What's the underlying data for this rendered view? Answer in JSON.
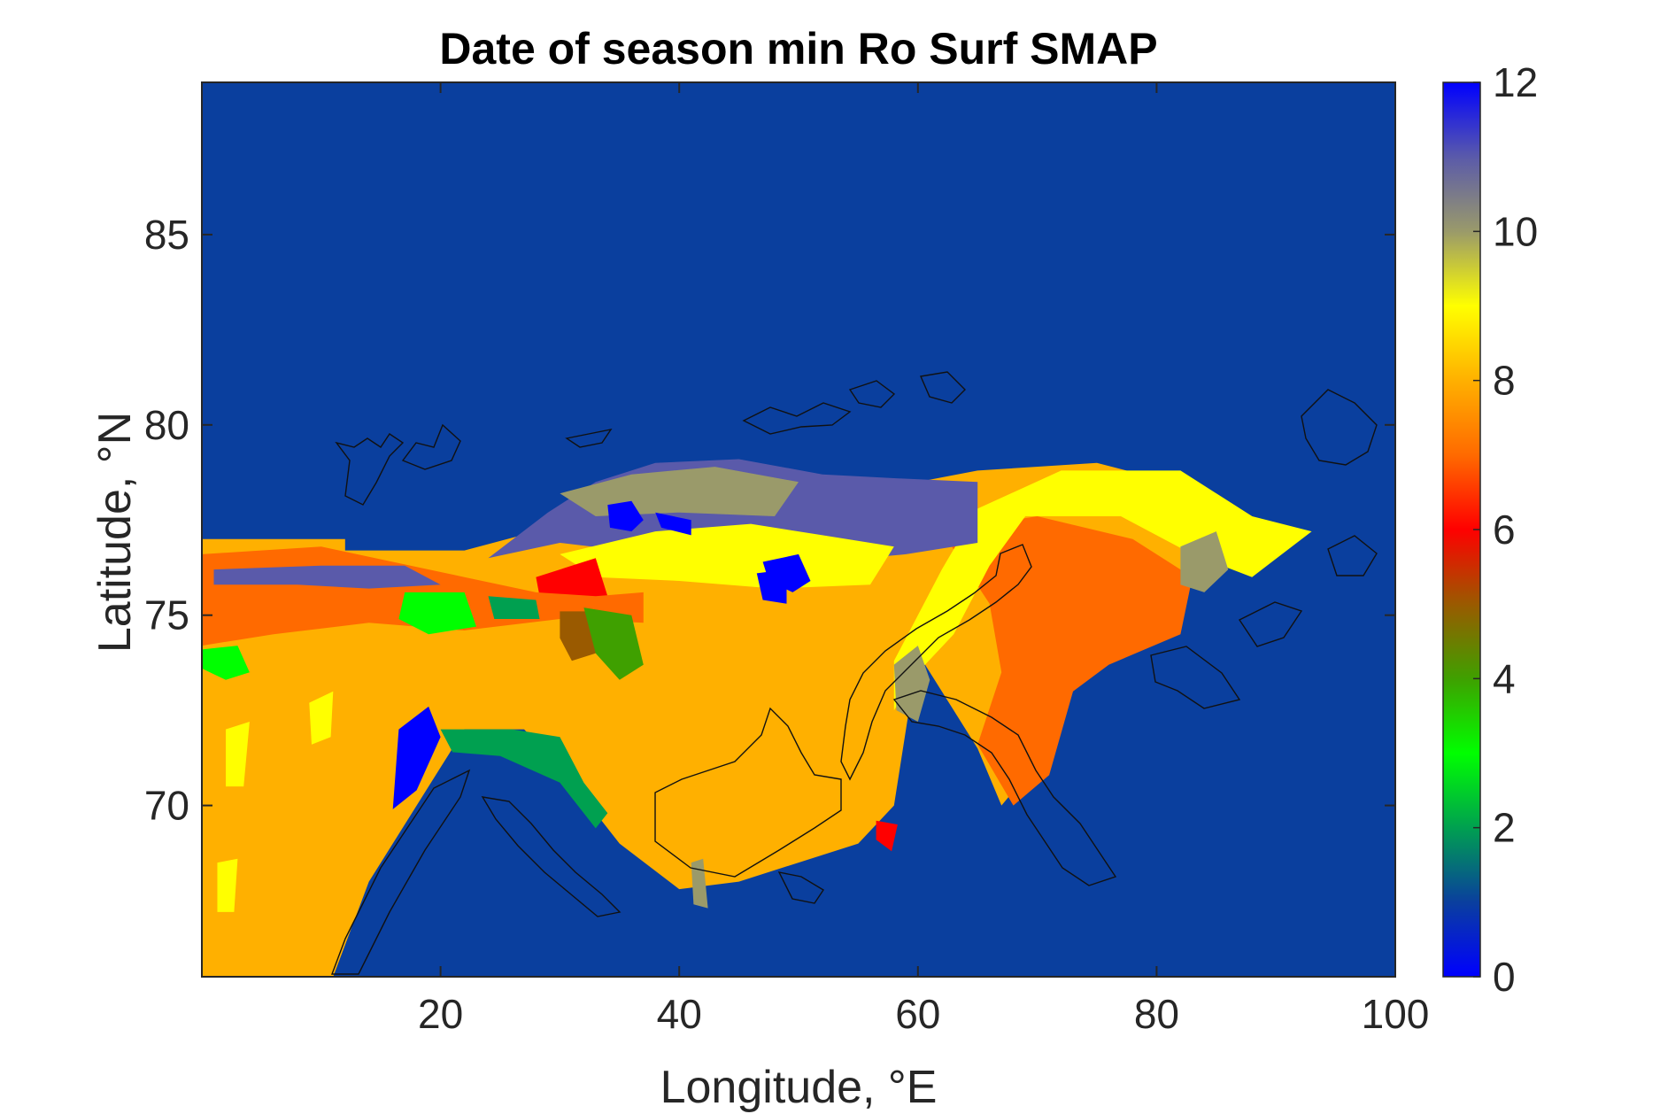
{
  "chart_data": {
    "type": "heatmap",
    "title": "Date of season min Ro Surf SMAP",
    "xlabel": "Longitude, °E",
    "ylabel": "Latitude, °N",
    "xlim": [
      0,
      100
    ],
    "ylim": [
      65.5,
      89
    ],
    "xticks": [
      20,
      40,
      60,
      80,
      100
    ],
    "yticks": [
      70,
      75,
      80,
      85
    ],
    "colorbar": {
      "range": [
        0,
        12
      ],
      "ticks": [
        0,
        2,
        4,
        6,
        8,
        10,
        12
      ],
      "colormap": [
        {
          "value": 0,
          "color": "#0000ff"
        },
        {
          "value": 1,
          "color": "#0a3f9e"
        },
        {
          "value": 2,
          "color": "#00a050"
        },
        {
          "value": 3,
          "color": "#00ff00"
        },
        {
          "value": 4,
          "color": "#3fa000"
        },
        {
          "value": 5,
          "color": "#9a5a00"
        },
        {
          "value": 6,
          "color": "#ff0000"
        },
        {
          "value": 7,
          "color": "#ff6a00"
        },
        {
          "value": 8,
          "color": "#ffb000"
        },
        {
          "value": 9,
          "color": "#ffff00"
        },
        {
          "value": 10,
          "color": "#9a9a6a"
        },
        {
          "value": 11,
          "color": "#5a5aaa"
        },
        {
          "value": 12,
          "color": "#0000ff"
        }
      ]
    },
    "background_value": 1,
    "regions": [
      {
        "value": 8,
        "polygon": [
          [
            0,
            77
          ],
          [
            12,
            77
          ],
          [
            12,
            76.7
          ],
          [
            22,
            76.7
          ],
          [
            28,
            77.2
          ],
          [
            30,
            77.7
          ],
          [
            37,
            78.2
          ],
          [
            45,
            78.4
          ],
          [
            55,
            78.2
          ],
          [
            65,
            78.8
          ],
          [
            75,
            79
          ],
          [
            85,
            78.2
          ],
          [
            90,
            77.2
          ],
          [
            84,
            75.9
          ],
          [
            78,
            75
          ],
          [
            72,
            73.6
          ],
          [
            71,
            71.5
          ],
          [
            67,
            70
          ],
          [
            65,
            71.5
          ],
          [
            60,
            74
          ],
          [
            58,
            70
          ],
          [
            55,
            69
          ],
          [
            50,
            68.5
          ],
          [
            45,
            68
          ],
          [
            40,
            67.8
          ],
          [
            35,
            69
          ],
          [
            30,
            71
          ],
          [
            27,
            72
          ],
          [
            22,
            72
          ],
          [
            20,
            71
          ],
          [
            14,
            68
          ],
          [
            11,
            65.5
          ],
          [
            0,
            65.5
          ]
        ]
      },
      {
        "value": 7,
        "polygon": [
          [
            62,
            77.2
          ],
          [
            70,
            77.6
          ],
          [
            78,
            77
          ],
          [
            83,
            76
          ],
          [
            82,
            74.5
          ],
          [
            76,
            73.7
          ],
          [
            73,
            73
          ],
          [
            71,
            70.8
          ],
          [
            68,
            70
          ],
          [
            65,
            71.6
          ],
          [
            67,
            73.5
          ],
          [
            66,
            75.3
          ]
        ]
      },
      {
        "value": 9,
        "polygon": [
          [
            60,
            75
          ],
          [
            62,
            76.2
          ],
          [
            65,
            77.8
          ],
          [
            72,
            78.8
          ],
          [
            82,
            78.8
          ],
          [
            88,
            77.6
          ],
          [
            93,
            77.2
          ],
          [
            88,
            76
          ],
          [
            83,
            76.6
          ],
          [
            77,
            77.6
          ],
          [
            69,
            77.6
          ],
          [
            66,
            76.3
          ],
          [
            63,
            74.5
          ],
          [
            60,
            73.5
          ],
          [
            58,
            72.5
          ],
          [
            58,
            73.8
          ]
        ]
      },
      {
        "value": 10,
        "polygon": [
          [
            58,
            73.7
          ],
          [
            60,
            74.2
          ],
          [
            61,
            73.3
          ],
          [
            60,
            72.2
          ],
          [
            58.2,
            72.5
          ]
        ]
      },
      {
        "value": 10,
        "polygon": [
          [
            82,
            76.8
          ],
          [
            85,
            77.2
          ],
          [
            86,
            76.2
          ],
          [
            84,
            75.6
          ],
          [
            82,
            75.8
          ]
        ]
      },
      {
        "value": 11,
        "polygon": [
          [
            29,
            77.7
          ],
          [
            33,
            78.5
          ],
          [
            38,
            79
          ],
          [
            45,
            79.1
          ],
          [
            52,
            78.7
          ],
          [
            58,
            78.6
          ],
          [
            65,
            78.5
          ],
          [
            65,
            76.9
          ],
          [
            59,
            76.6
          ],
          [
            52,
            76.4
          ],
          [
            45,
            76.5
          ],
          [
            38,
            76.6
          ],
          [
            30,
            76.9
          ],
          [
            24,
            76.5
          ]
        ]
      },
      {
        "value": 10,
        "polygon": [
          [
            30,
            78.2
          ],
          [
            36,
            78.7
          ],
          [
            43,
            78.9
          ],
          [
            50,
            78.5
          ],
          [
            48,
            77.6
          ],
          [
            40,
            77.7
          ],
          [
            33,
            77.6
          ]
        ]
      },
      {
        "value": 9,
        "polygon": [
          [
            30,
            76.6
          ],
          [
            38,
            77.2
          ],
          [
            46,
            77.4
          ],
          [
            52,
            77.1
          ],
          [
            58,
            76.8
          ],
          [
            56,
            75.8
          ],
          [
            48,
            75.7
          ],
          [
            40,
            75.9
          ],
          [
            33,
            76
          ]
        ]
      },
      {
        "value": 0,
        "polygon": [
          [
            34,
            77.9
          ],
          [
            36,
            78
          ],
          [
            37,
            77.5
          ],
          [
            36,
            77.2
          ],
          [
            34.2,
            77.3
          ]
        ]
      },
      {
        "value": 0,
        "polygon": [
          [
            38,
            77.7
          ],
          [
            41,
            77.5
          ],
          [
            41,
            77.1
          ],
          [
            38.5,
            77.3
          ]
        ]
      },
      {
        "value": 0,
        "polygon": [
          [
            47,
            76.4
          ],
          [
            50,
            76.6
          ],
          [
            51,
            75.9
          ],
          [
            49.5,
            75.6
          ],
          [
            47.5,
            75.9
          ]
        ]
      },
      {
        "value": 6,
        "polygon": [
          [
            28,
            76
          ],
          [
            33,
            76.5
          ],
          [
            34,
            75.5
          ],
          [
            31,
            75.3
          ],
          [
            28.3,
            75.5
          ]
        ]
      },
      {
        "value": 7,
        "polygon": [
          [
            0,
            76.6
          ],
          [
            10,
            76.8
          ],
          [
            16,
            76.4
          ],
          [
            22,
            76
          ],
          [
            28,
            75.6
          ],
          [
            33,
            75.5
          ],
          [
            37,
            75.6
          ],
          [
            37,
            74.8
          ],
          [
            30,
            74.9
          ],
          [
            22,
            74.6
          ],
          [
            14,
            74.8
          ],
          [
            6,
            74.5
          ],
          [
            0,
            74.2
          ]
        ]
      },
      {
        "value": 11,
        "polygon": [
          [
            1,
            76.2
          ],
          [
            10,
            76.3
          ],
          [
            17,
            76.3
          ],
          [
            20,
            75.8
          ],
          [
            14,
            75.7
          ],
          [
            8,
            75.8
          ],
          [
            1,
            75.8
          ]
        ]
      },
      {
        "value": 3,
        "polygon": [
          [
            17,
            75.6
          ],
          [
            22,
            75.6
          ],
          [
            23,
            74.7
          ],
          [
            19,
            74.5
          ],
          [
            16.5,
            74.9
          ]
        ]
      },
      {
        "value": 2,
        "polygon": [
          [
            24,
            75.5
          ],
          [
            28,
            75.4
          ],
          [
            28.3,
            74.9
          ],
          [
            24.5,
            74.9
          ]
        ]
      },
      {
        "value": 5,
        "polygon": [
          [
            30,
            75.1
          ],
          [
            33,
            75.1
          ],
          [
            33,
            74
          ],
          [
            31,
            73.8
          ],
          [
            30,
            74.4
          ]
        ]
      },
      {
        "value": 4,
        "polygon": [
          [
            32,
            75.2
          ],
          [
            36,
            75
          ],
          [
            37,
            73.7
          ],
          [
            35,
            73.3
          ],
          [
            33,
            74
          ]
        ]
      },
      {
        "value": 3,
        "polygon": [
          [
            0,
            74.1
          ],
          [
            3,
            74.2
          ],
          [
            4,
            73.5
          ],
          [
            2,
            73.3
          ],
          [
            0,
            73.6
          ]
        ]
      },
      {
        "value": 0,
        "polygon": [
          [
            16.5,
            72
          ],
          [
            19,
            72.6
          ],
          [
            20,
            71.8
          ],
          [
            18,
            70.4
          ],
          [
            16,
            69.9
          ]
        ]
      },
      {
        "value": 2,
        "polygon": [
          [
            20,
            72
          ],
          [
            26,
            72
          ],
          [
            30,
            71.8
          ],
          [
            32,
            70.6
          ],
          [
            34,
            69.8
          ],
          [
            33,
            69.4
          ],
          [
            30,
            70.6
          ],
          [
            25,
            71.3
          ],
          [
            21,
            71.4
          ]
        ]
      },
      {
        "value": 6,
        "polygon": [
          [
            56.5,
            69.6
          ],
          [
            58.3,
            69.5
          ],
          [
            57.8,
            68.8
          ],
          [
            56.5,
            69.1
          ]
        ]
      },
      {
        "value": 10,
        "polygon": [
          [
            41,
            68.5
          ],
          [
            42,
            68.6
          ],
          [
            42.4,
            67.3
          ],
          [
            41.2,
            67.4
          ]
        ]
      },
      {
        "value": 9,
        "polygon": [
          [
            9,
            72.7
          ],
          [
            11,
            73
          ],
          [
            10.8,
            71.8
          ],
          [
            9.2,
            71.6
          ]
        ]
      },
      {
        "value": 9,
        "polygon": [
          [
            2,
            72
          ],
          [
            4,
            72.2
          ],
          [
            3.5,
            70.5
          ],
          [
            2,
            70.5
          ]
        ]
      },
      {
        "value": 9,
        "polygon": [
          [
            1.3,
            68.5
          ],
          [
            3,
            68.6
          ],
          [
            2.7,
            67.2
          ],
          [
            1.3,
            67.2
          ]
        ]
      },
      {
        "value": 0,
        "polygon": [
          [
            46.5,
            76.1
          ],
          [
            49,
            76.2
          ],
          [
            49,
            75.3
          ],
          [
            47,
            75.4
          ]
        ]
      }
    ]
  }
}
